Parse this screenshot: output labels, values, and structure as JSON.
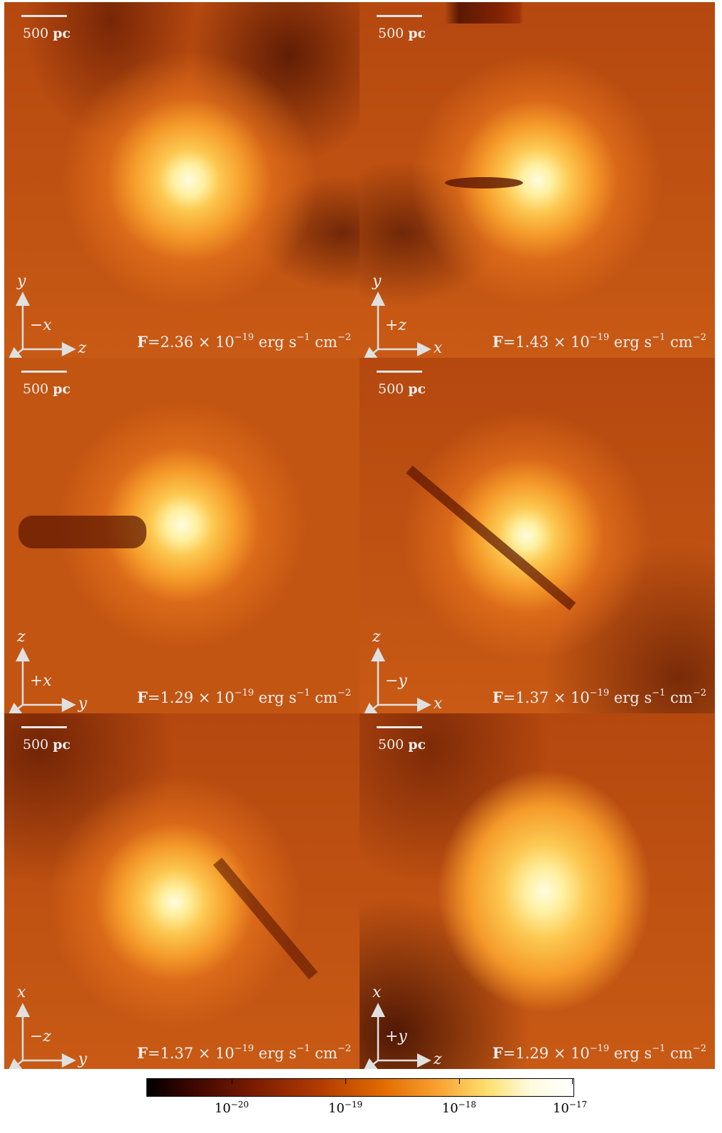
{
  "panels": [
    {
      "scale_value": "500",
      "scale_unit": "pc",
      "flux_prefix": "=2.36 × 10",
      "flux_exp": "−19",
      "up": "y",
      "right": "z",
      "view": "−x"
    },
    {
      "scale_value": "500",
      "scale_unit": "pc",
      "flux_prefix": "=1.43 × 10",
      "flux_exp": "−19",
      "up": "y",
      "right": "x",
      "view": "+z"
    },
    {
      "scale_value": "500",
      "scale_unit": "pc",
      "flux_prefix": "=1.29 × 10",
      "flux_exp": "−19",
      "up": "z",
      "right": "y",
      "view": "+x"
    },
    {
      "scale_value": "500",
      "scale_unit": "pc",
      "flux_prefix": "=1.37 × 10",
      "flux_exp": "−19",
      "up": "z",
      "right": "x",
      "view": "−y"
    },
    {
      "scale_value": "500",
      "scale_unit": "pc",
      "flux_prefix": "=1.37 × 10",
      "flux_exp": "−19",
      "up": "x",
      "right": "y",
      "view": "−z"
    },
    {
      "scale_value": "500",
      "scale_unit": "pc",
      "flux_prefix": "=1.29 × 10",
      "flux_exp": "−19",
      "up": "x",
      "right": "z",
      "view": "+y"
    }
  ],
  "flux_symbol": "F",
  "flux_unit_erg": "erg s",
  "flux_unit_s_exp": "−1",
  "flux_unit_cm": "cm",
  "flux_unit_cm_exp": "−2",
  "colorbar": {
    "ticks": [
      {
        "base": "10",
        "exp": "−20"
      },
      {
        "base": "10",
        "exp": "−19"
      },
      {
        "base": "10",
        "exp": "−18"
      },
      {
        "base": "10",
        "exp": "−17"
      }
    ],
    "colors": [
      "#000000",
      "#7a1c00",
      "#e06a00",
      "#fde070",
      "#ffffff"
    ]
  }
}
